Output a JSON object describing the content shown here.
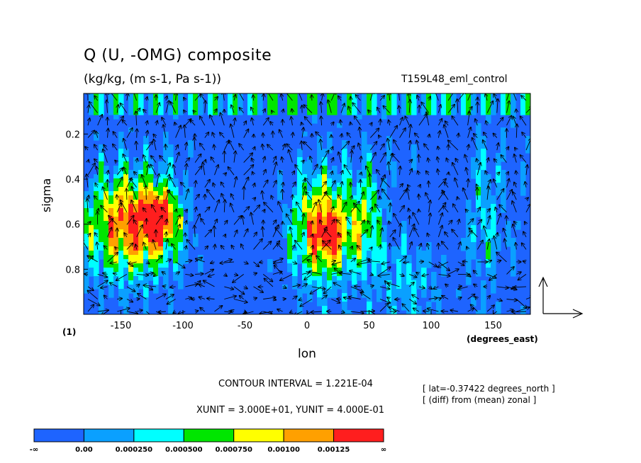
{
  "header": {
    "title": "Q (U, -OMG) composite",
    "subtitle": "(kg/kg, (m s-1, Pa s-1))",
    "run_name": "T159L48_eml_control"
  },
  "page_number": "(1)",
  "footer": {
    "contour_interval": "CONTOUR INTERVAL = 1.221E-04",
    "vector_units": "XUNIT = 3.000E+01, YUNIT = 4.000E-01",
    "lat_note": "[ lat=-0.37422 degrees_north ]",
    "diff_note": "[ (diff) from (mean) zonal ]"
  },
  "chart_data": {
    "type": "heatmap",
    "subtype": "filled contour with overlaid wind vectors",
    "title": "Q (U, -OMG) composite",
    "subtitle": "(kg/kg, (m s-1, Pa s-1))",
    "xlabel": "lon",
    "xunits": "(degrees_east)",
    "ylabel": "sigma",
    "xlim": [
      -180,
      180
    ],
    "ylim": [
      1.0,
      0.02
    ],
    "y_inverted": true,
    "x_ticks": [
      -150,
      -100,
      -50,
      0,
      50,
      100,
      150
    ],
    "x_tick_labels": [
      "-150",
      "-100",
      "-50",
      "0",
      "50",
      "100",
      "150"
    ],
    "y_ticks": [
      0.2,
      0.4,
      0.6,
      0.8
    ],
    "y_tick_labels": [
      "0.2",
      "0.4",
      "0.6",
      "0.8"
    ],
    "colorbar": {
      "labels": [
        "-∞",
        "0.00",
        "0.000250",
        "0.000500",
        "0.000750",
        "0.00100",
        "0.00125",
        "∞"
      ],
      "colors": [
        "#1e64ff",
        "#0aa0ff",
        "#00ffff",
        "#00e600",
        "#ffff00",
        "#ffa000",
        "#ff1e1e"
      ]
    },
    "approx_features": [
      {
        "lon_range": [
          -180,
          -100
        ],
        "sigma_range": [
          0.35,
          0.9
        ],
        "level": "0.000500 to 0.00125",
        "note": "moist region west of -100"
      },
      {
        "lon_range": [
          -125,
          -110
        ],
        "sigma_range": [
          0.5,
          0.65
        ],
        "level": ">0.00125",
        "note": "local maximum"
      },
      {
        "lon_range": [
          -100,
          -20
        ],
        "sigma_range": [
          0.1,
          1.0
        ],
        "level": "<0.00",
        "note": "dry anomaly"
      },
      {
        "lon_range": [
          -10,
          60
        ],
        "sigma_range": [
          0.35,
          0.95
        ],
        "level": "0.000250 to 0.00125",
        "note": "moist region around 0-30"
      },
      {
        "lon_range": [
          15,
          25
        ],
        "sigma_range": [
          0.6,
          0.7
        ],
        "level": ">0.00125",
        "note": "local maximum"
      },
      {
        "lon_range": [
          60,
          180
        ],
        "sigma_range": [
          0.1,
          1.0
        ],
        "level": "<0.00 to 0.000250",
        "note": "mostly dry with cyan streaks"
      }
    ],
    "vector_reference": {
      "xunit": 30.0,
      "yunit": 0.4
    }
  }
}
